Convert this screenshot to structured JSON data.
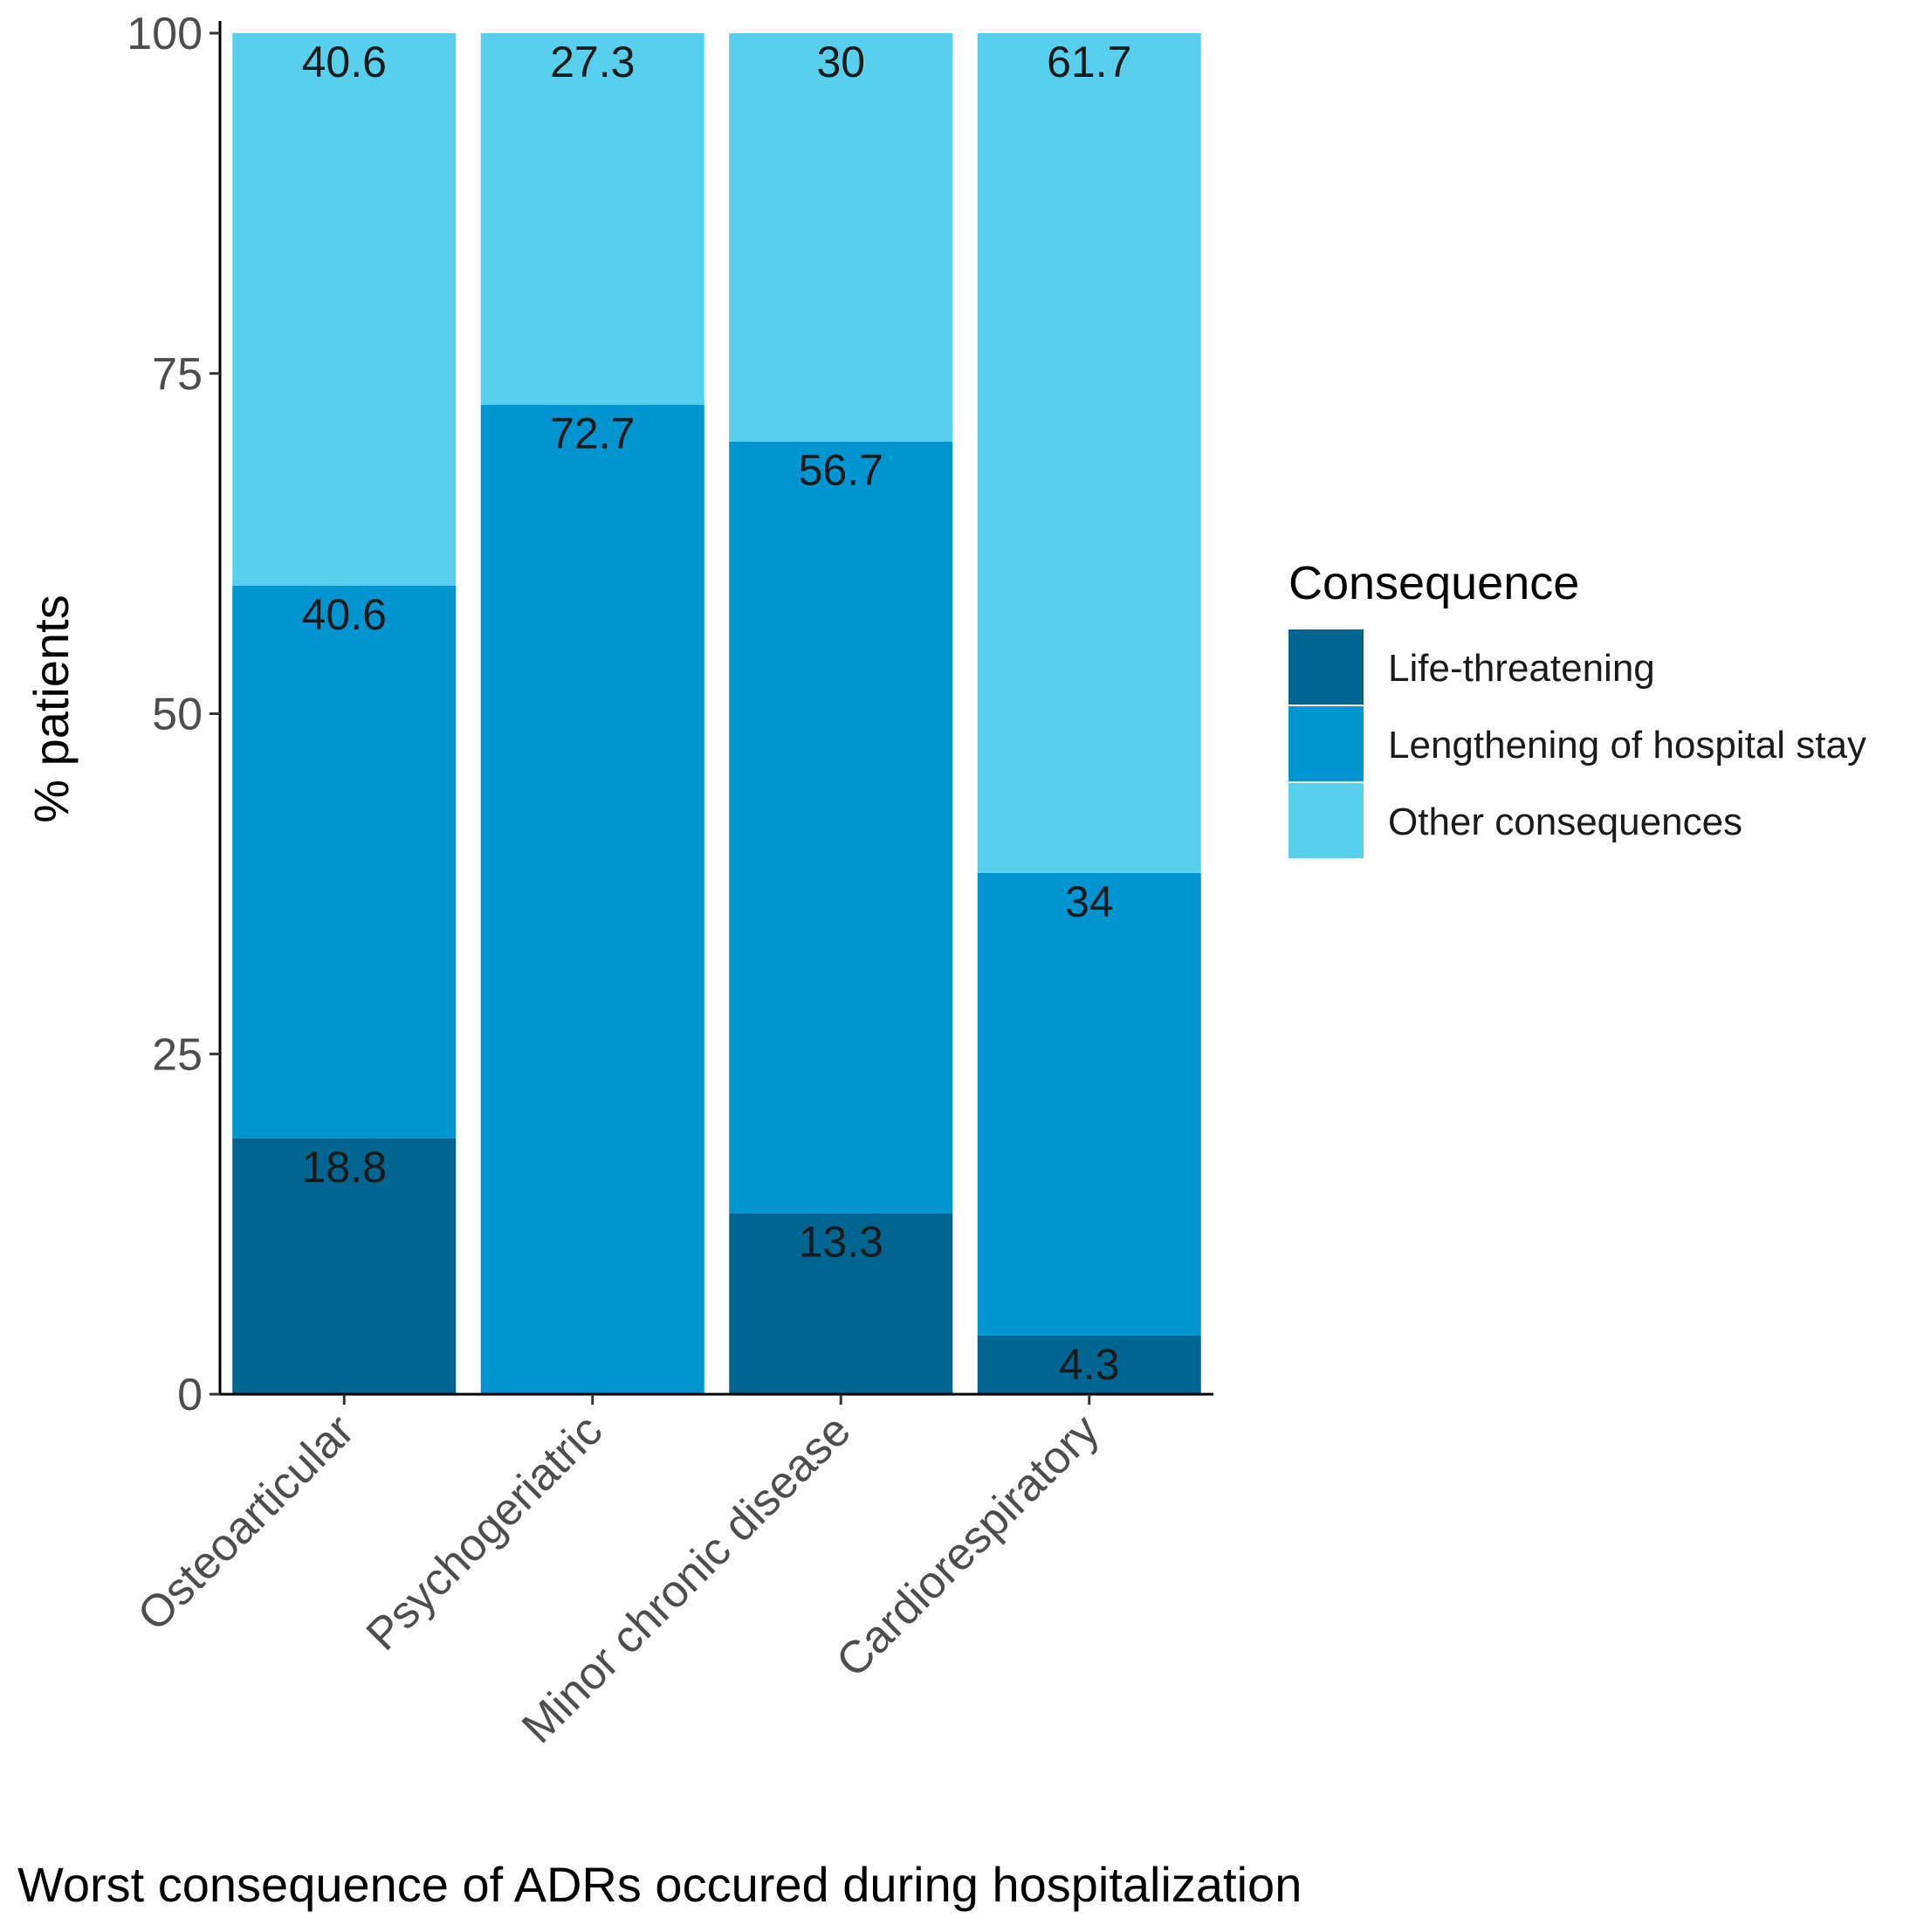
{
  "chart_data": {
    "type": "bar",
    "stacked": true,
    "title": "",
    "xlabel": "Worst consequence of ADRs occured during hospitalization",
    "ylabel": "% patients",
    "ylim": [
      0,
      100
    ],
    "yticks": [
      0,
      25,
      50,
      75,
      100
    ],
    "categories": [
      "Osteoarticular",
      "Psychogeriatric",
      "Minor chronic disease",
      "Cardiorespiratory"
    ],
    "series": [
      {
        "name": "Life-threatening",
        "color": "#006590",
        "values": [
          18.8,
          0,
          13.3,
          4.3
        ],
        "labels": [
          "18.8",
          "",
          "13.3",
          "4.3"
        ]
      },
      {
        "name": "Lengthening of hospital stay",
        "color": "#0094D0",
        "values": [
          40.6,
          72.7,
          56.7,
          34
        ],
        "labels": [
          "40.6",
          "72.7",
          "56.7",
          "34"
        ]
      },
      {
        "name": "Other consequences",
        "color": "#58CFEC",
        "values": [
          40.6,
          27.3,
          30,
          61.7
        ],
        "labels": [
          "40.6",
          "27.3",
          "30",
          "61.7"
        ]
      }
    ],
    "legend": {
      "title": "Consequence",
      "position": "right"
    }
  }
}
